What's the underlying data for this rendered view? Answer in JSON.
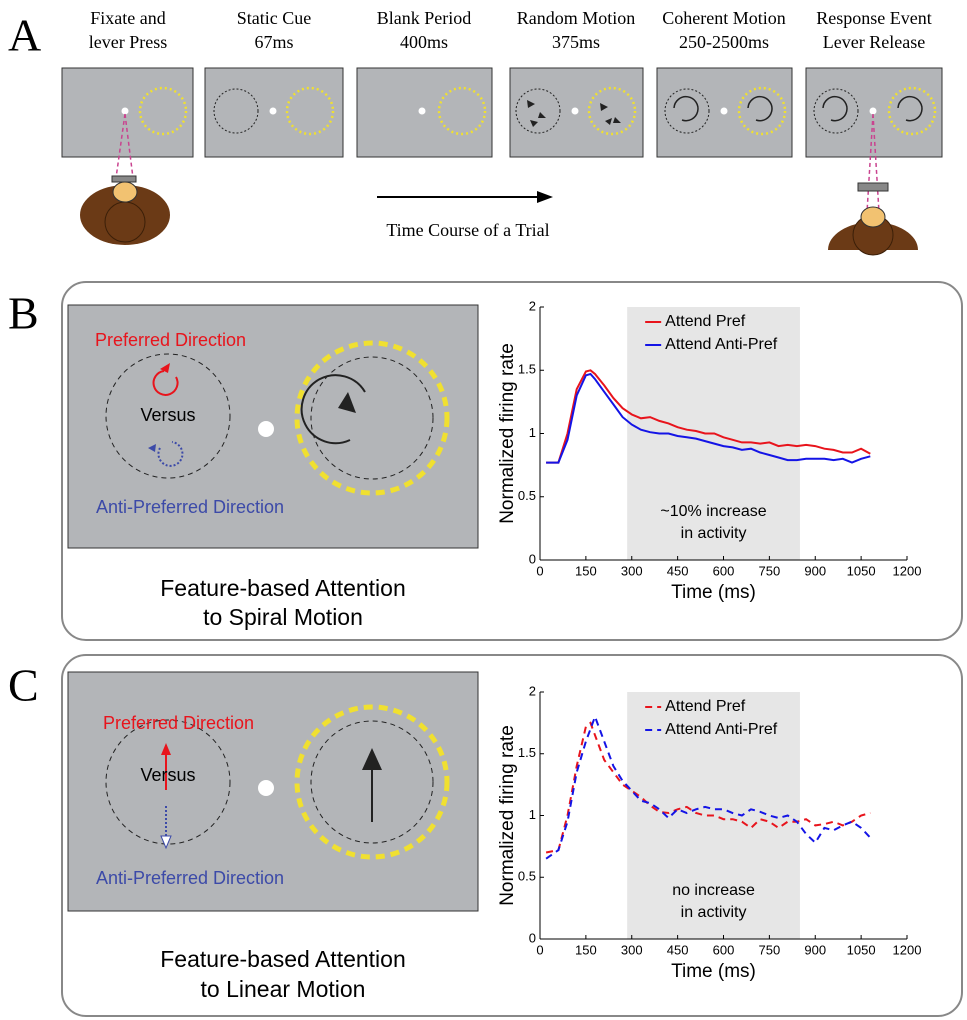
{
  "panel_a": {
    "label": "A",
    "steps": [
      [
        "Fixate and",
        "lever Press"
      ],
      [
        "Static Cue",
        "67ms"
      ],
      [
        "Blank Period",
        "400ms"
      ],
      [
        "Random Motion",
        "375ms"
      ],
      [
        "Coherent Motion",
        "250-2500ms"
      ],
      [
        "Response Event",
        "Lever Release"
      ]
    ],
    "arrow_caption": "Time Course of a Trial"
  },
  "panel_b": {
    "label": "B",
    "preferred": "Preferred Direction",
    "versus": "Versus",
    "anti": "Anti-Preferred Direction",
    "caption": [
      "Feature-based Attention",
      "to Spiral Motion"
    ]
  },
  "panel_c": {
    "label": "C",
    "preferred": "Preferred Direction",
    "versus": "Versus",
    "anti": "Anti-Preferred Direction",
    "caption": [
      "Feature-based Attention",
      "to Linear Motion"
    ]
  },
  "chart_data": [
    {
      "type": "line",
      "xlabel": "Time (ms)",
      "ylabel": "Normalized firing rate",
      "dashed": false,
      "xlim": [
        0,
        1200
      ],
      "xticks": [
        0,
        150,
        300,
        450,
        600,
        750,
        900,
        1050,
        1200
      ],
      "ylim": [
        0,
        2
      ],
      "yticks": [
        0,
        0.5,
        1,
        1.5,
        2
      ],
      "shade": [
        285,
        850
      ],
      "shade_color": "#e6e6e6",
      "annotation": [
        "~10% increase",
        "in activity"
      ],
      "legend": "upper right",
      "x": [
        20,
        60,
        90,
        120,
        150,
        165,
        180,
        210,
        240,
        270,
        300,
        330,
        360,
        390,
        420,
        450,
        480,
        510,
        540,
        570,
        600,
        630,
        660,
        690,
        720,
        750,
        780,
        810,
        840,
        870,
        900,
        930,
        960,
        990,
        1020,
        1050,
        1080
      ],
      "series": [
        {
          "name": "Attend Pref",
          "color": "#e8141c",
          "values": [
            0.77,
            0.77,
            1.0,
            1.35,
            1.49,
            1.5,
            1.47,
            1.38,
            1.28,
            1.2,
            1.15,
            1.12,
            1.13,
            1.1,
            1.08,
            1.05,
            1.03,
            1.02,
            1.0,
            1.0,
            0.97,
            0.95,
            0.93,
            0.93,
            0.92,
            0.93,
            0.9,
            0.91,
            0.9,
            0.91,
            0.9,
            0.88,
            0.87,
            0.85,
            0.85,
            0.88,
            0.84
          ]
        },
        {
          "name": "Attend Anti-Pref",
          "color": "#1414e6",
          "values": [
            0.77,
            0.77,
            0.95,
            1.3,
            1.46,
            1.47,
            1.43,
            1.33,
            1.23,
            1.13,
            1.07,
            1.03,
            1.01,
            1.0,
            1.0,
            0.98,
            0.97,
            0.96,
            0.94,
            0.92,
            0.9,
            0.89,
            0.87,
            0.88,
            0.85,
            0.83,
            0.81,
            0.79,
            0.79,
            0.8,
            0.8,
            0.8,
            0.79,
            0.8,
            0.77,
            0.8,
            0.82
          ]
        }
      ]
    },
    {
      "type": "line",
      "xlabel": "Time (ms)",
      "ylabel": "Normalized firing rate",
      "dashed": true,
      "xlim": [
        0,
        1200
      ],
      "xticks": [
        0,
        150,
        300,
        450,
        600,
        750,
        900,
        1050,
        1200
      ],
      "ylim": [
        0,
        2
      ],
      "yticks": [
        0,
        0.5,
        1,
        1.5,
        2
      ],
      "shade": [
        285,
        850
      ],
      "shade_color": "#e6e6e6",
      "annotation": [
        "no increase",
        "in activity"
      ],
      "legend": "upper right",
      "x": [
        20,
        60,
        90,
        120,
        150,
        165,
        180,
        210,
        240,
        270,
        300,
        330,
        360,
        390,
        420,
        450,
        480,
        510,
        540,
        570,
        600,
        630,
        660,
        690,
        720,
        750,
        780,
        810,
        840,
        870,
        900,
        930,
        960,
        990,
        1020,
        1050,
        1080
      ],
      "series": [
        {
          "name": "Attend Pref",
          "color": "#e8141c",
          "values": [
            0.7,
            0.72,
            1.0,
            1.4,
            1.72,
            1.75,
            1.65,
            1.45,
            1.35,
            1.25,
            1.2,
            1.15,
            1.08,
            1.03,
            1.02,
            1.05,
            1.07,
            1.02,
            1.0,
            1.0,
            0.97,
            0.97,
            0.95,
            0.9,
            0.97,
            0.95,
            0.9,
            0.95,
            0.95,
            0.97,
            0.92,
            0.93,
            0.95,
            0.92,
            0.95,
            1.0,
            1.02
          ]
        },
        {
          "name": "Attend Anti-Pref",
          "color": "#1414e6",
          "values": [
            0.65,
            0.72,
            0.95,
            1.35,
            1.6,
            1.7,
            1.8,
            1.6,
            1.4,
            1.28,
            1.2,
            1.12,
            1.1,
            1.05,
            0.98,
            1.05,
            1.02,
            1.05,
            1.07,
            1.05,
            1.05,
            1.02,
            1.0,
            1.05,
            1.03,
            1.0,
            0.98,
            1.0,
            0.95,
            0.85,
            0.78,
            0.9,
            0.88,
            0.92,
            0.95,
            0.9,
            0.82
          ]
        }
      ]
    }
  ]
}
